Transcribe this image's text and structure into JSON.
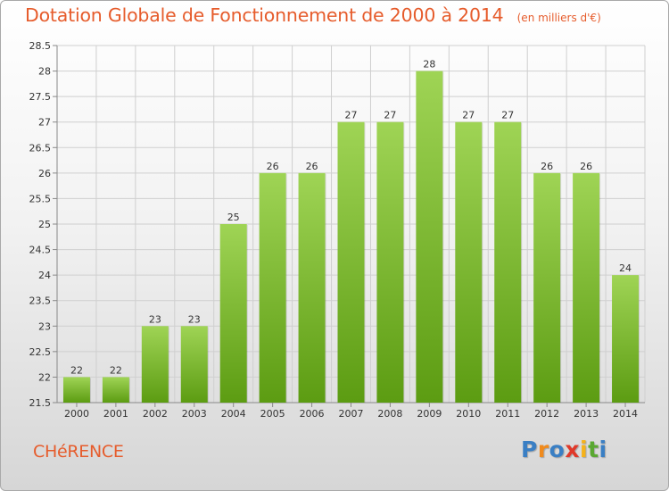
{
  "header": {
    "title": "Dotation Globale de Fonctionnement de 2000 à 2014",
    "subtitle": "(en milliers d'€)"
  },
  "footer": {
    "commune": "CHéRENCE",
    "logo_text": "Proxiti"
  },
  "colors": {
    "title": "#e65c2c",
    "bar_top": "#9fd455",
    "bar_bottom": "#5c9c12",
    "grid": "#cfcfcf",
    "axis_text": "#333333"
  },
  "chart_data": {
    "type": "bar",
    "categories": [
      "2000",
      "2001",
      "2002",
      "2003",
      "2004",
      "2005",
      "2006",
      "2007",
      "2008",
      "2009",
      "2010",
      "2011",
      "2012",
      "2013",
      "2014"
    ],
    "values": [
      22,
      22,
      23,
      23,
      25,
      26,
      26,
      27,
      27,
      28,
      27,
      27,
      26,
      26,
      24
    ],
    "data_labels": [
      "22",
      "22",
      "23",
      "23",
      "25",
      "26",
      "26",
      "27",
      "27",
      "28",
      "27",
      "27",
      "26",
      "26",
      "24"
    ],
    "bar_heights": [
      22,
      22,
      23,
      23,
      25,
      26,
      26,
      27,
      27,
      28,
      27,
      27,
      26,
      26,
      24
    ],
    "ylim": [
      21.5,
      28.5
    ],
    "yticks": [
      21.5,
      22,
      22.5,
      23,
      23.5,
      24,
      24.5,
      25,
      25.5,
      26,
      26.5,
      27,
      27.5,
      28,
      28.5
    ],
    "ytick_labels": [
      "21.5",
      "22",
      "22.5",
      "23",
      "23.5",
      "24",
      "24.5",
      "25",
      "25.5",
      "26",
      "26.5",
      "27",
      "27.5",
      "28",
      "28.5"
    ],
    "title": "Dotation Globale de Fonctionnement de 2000 à 2014",
    "xlabel": "",
    "ylabel": "",
    "grid": true
  }
}
